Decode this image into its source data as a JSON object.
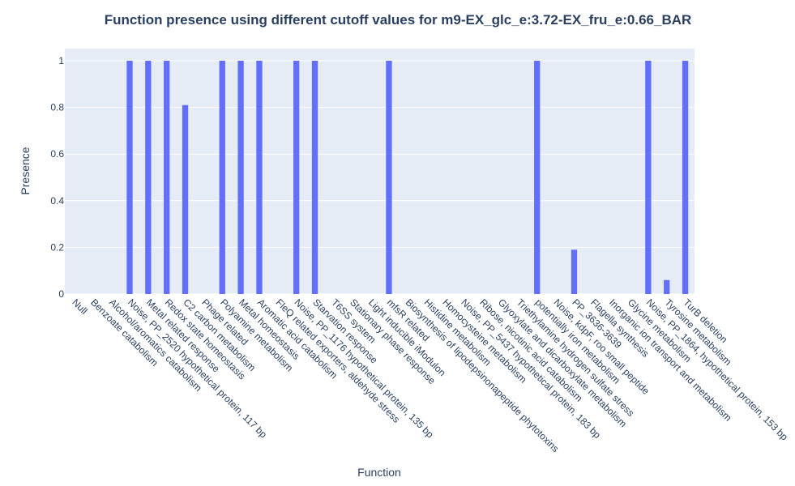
{
  "chart_data": {
    "type": "bar",
    "title": "Function presence using different cutoff values for m9-EX_glc_e:3.72-EX_fru_e:0.66_BAR",
    "xlabel": "Function",
    "ylabel": "Presence",
    "ylim": [
      0,
      1.05
    ],
    "yticks": [
      0,
      0.2,
      0.4,
      0.6,
      0.8,
      1
    ],
    "ytick_labels": [
      "0",
      "0.2",
      "0.4",
      "0.6",
      "0.8",
      "1"
    ],
    "grid": true,
    "colors": {
      "bar": "#636efa",
      "plot_bg": "#e5ecf6",
      "grid": "#ffffff",
      "text": "#2a3f5f"
    },
    "categories": [
      "Null",
      "Benzoate catabolism",
      "Alcohol/aromatics catabolism",
      "Noise, PP_2520 hypothetical protein, 117 bp",
      "Metal related response",
      "Redox state homeostasis",
      "C2 carbon metabolism",
      "Phage related",
      "Polyamine metabolism",
      "Metal homeostasis",
      "Aromatic acid catabolism",
      "FleQ related exporters, aldehyde stress",
      "Noise, PP_1176 hypothetical protein, 135 bp",
      "Starvation response",
      "T6SS system",
      "Stationary phase response",
      "Light inducible iModulon",
      "mfsR related",
      "Biosynthesis of lipodepsinonapeptide phytotoxins",
      "Histidine metabolism",
      "Homocysteine metabolism",
      "Noise, PP_5437 hypothetical protein, 183 bp",
      "Ribose, nicotinic acid catabolism",
      "Glyoxylate and dicarboxylate metabolism",
      "Triethylamine hydrogen sulfate stress",
      "potentially iron metabolism",
      "Noise, kdpF, roo small peptide",
      "PP_3636-3639",
      "Flagella synthesis",
      "Inorganic ion transport and metabolism",
      "Glycine metabolism",
      "Noise, PP_1864, hypothetical protein, 153 bp",
      "Tyrosine metabolism",
      "TurB deletion"
    ],
    "values": [
      0,
      0,
      0,
      1,
      1,
      1,
      0.81,
      0,
      1,
      1,
      1,
      0,
      1,
      1,
      0,
      0,
      0,
      1,
      0,
      0,
      0,
      0,
      0,
      0,
      0,
      1,
      0,
      0.19,
      0,
      0,
      0,
      1,
      0.06,
      1
    ]
  }
}
